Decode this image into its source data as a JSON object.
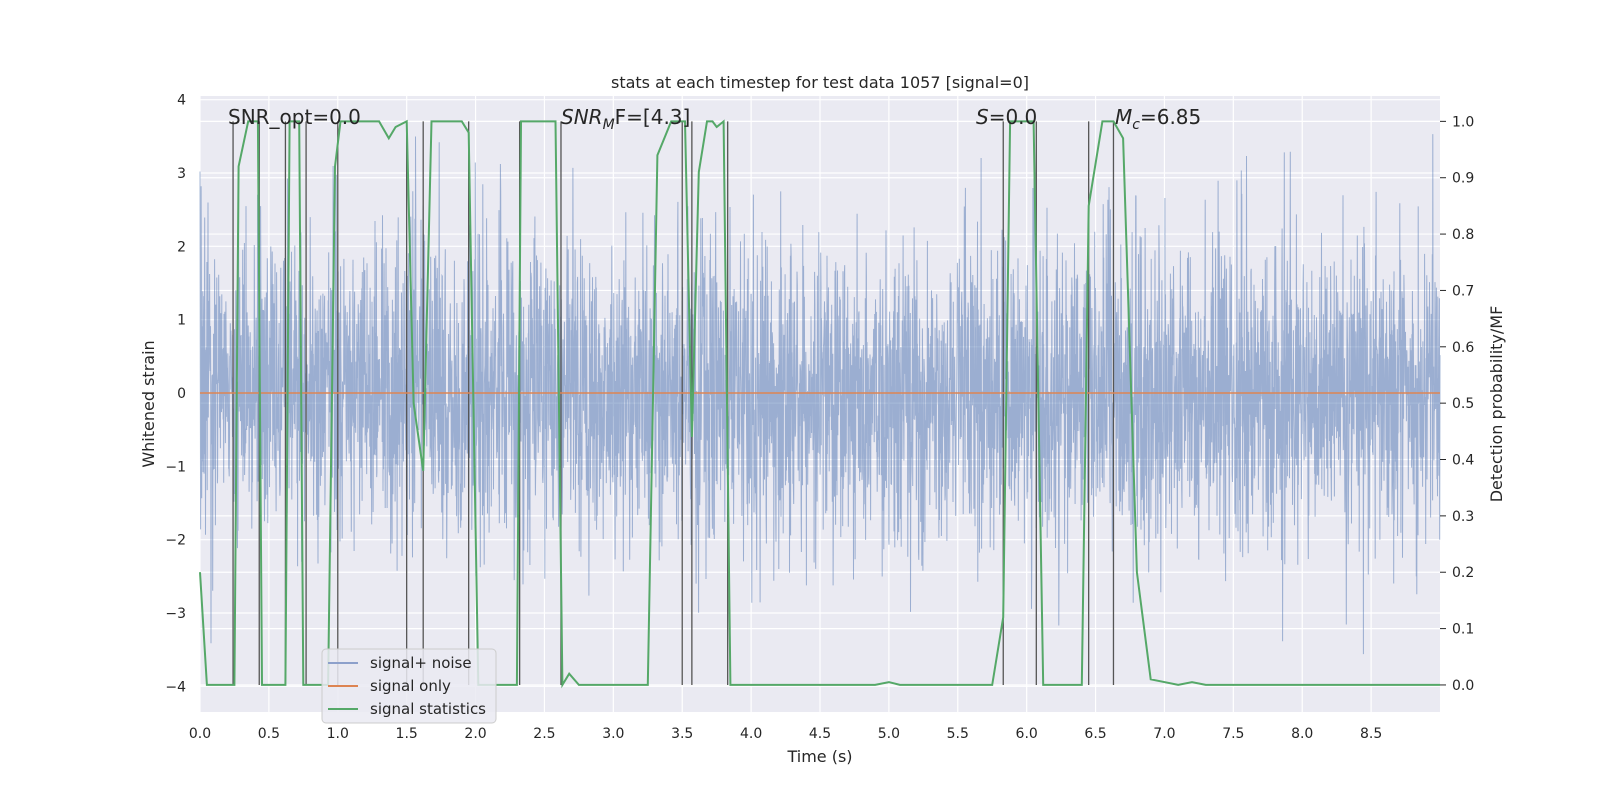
{
  "chart_data": {
    "type": "line",
    "title": "stats at each timestep for test data 1057 [signal=0]",
    "xlabel": "Time (s)",
    "ylabel_left": "Whitened strain",
    "ylabel_right": "Detection probability/MF",
    "xlim": [
      0.0,
      9.0
    ],
    "ylim_left": [
      -4.35,
      4.05
    ],
    "ylim_right": [
      -0.048,
      1.045
    ],
    "x_ticks": [
      "0.0",
      "0.5",
      "1.0",
      "1.5",
      "2.0",
      "2.5",
      "3.0",
      "3.5",
      "4.0",
      "4.5",
      "5.0",
      "5.5",
      "6.0",
      "6.5",
      "7.0",
      "7.5",
      "8.0",
      "8.5"
    ],
    "y_left_ticks": [
      "4",
      "3",
      "2",
      "1",
      "0",
      "−1",
      "−2",
      "−3",
      "−4"
    ],
    "y_right_ticks": [
      "1.0",
      "0.9",
      "0.8",
      "0.7",
      "0.6",
      "0.5",
      "0.4",
      "0.3",
      "0.2",
      "0.1",
      "0.0"
    ],
    "grid": true,
    "legend_position": "lower-left",
    "legend": [
      "signal+ noise",
      "signal only",
      "signal statistics"
    ],
    "annotations": {
      "snr_opt": "SNR_opt=0.0",
      "snr_mf_prefix": "SNR",
      "snr_mf_sub": "M",
      "snr_mf_suffix": "F=[4.3]",
      "s_label": "S",
      "s_value": "=0.0",
      "mc_label": "M",
      "mc_sub": "c",
      "mc_value": "=6.85"
    },
    "series": [
      {
        "name": "signal+ noise",
        "axis": "left",
        "color": "#4c72b0",
        "description": "whitened strain noise, roughly gaussian with std ~1 and peaks near ±3.5",
        "amplitude_std": 1.0,
        "n_points": 4500
      },
      {
        "name": "signal only",
        "axis": "left",
        "color": "#dd8452",
        "x": [
          0.0,
          9.0
        ],
        "y": [
          0.0,
          0.0
        ]
      },
      {
        "name": "signal statistics",
        "axis": "right",
        "color": "#55a868",
        "x": [
          0.0,
          0.05,
          0.25,
          0.28,
          0.35,
          0.42,
          0.45,
          0.62,
          0.65,
          0.72,
          0.75,
          0.93,
          0.98,
          1.02,
          1.05,
          1.3,
          1.37,
          1.42,
          1.5,
          1.55,
          1.62,
          1.68,
          1.9,
          1.95,
          2.02,
          2.3,
          2.33,
          2.38,
          2.58,
          2.63,
          2.68,
          2.75,
          3.25,
          3.32,
          3.42,
          3.52,
          3.57,
          3.62,
          3.68,
          3.72,
          3.75,
          3.8,
          3.85,
          3.92,
          4.9,
          5.0,
          5.08,
          5.75,
          5.83,
          5.88,
          6.05,
          6.12,
          6.4,
          6.45,
          6.55,
          6.63,
          6.7,
          6.8,
          6.9,
          7.1,
          7.2,
          7.3,
          9.0
        ],
        "y": [
          0.2,
          0.0,
          0.0,
          0.92,
          1.0,
          1.0,
          0.0,
          0.0,
          1.0,
          1.0,
          0.0,
          0.0,
          0.92,
          1.0,
          1.0,
          1.0,
          0.97,
          0.99,
          1.0,
          0.5,
          0.38,
          1.0,
          1.0,
          0.98,
          0.0,
          0.0,
          1.0,
          1.0,
          1.0,
          0.0,
          0.02,
          0.0,
          0.0,
          0.94,
          1.0,
          1.0,
          0.44,
          0.91,
          1.0,
          1.0,
          0.99,
          1.0,
          0.0,
          0.0,
          0.0,
          0.005,
          0.0,
          0.0,
          0.12,
          1.0,
          1.0,
          0.0,
          0.0,
          0.85,
          1.0,
          1.0,
          0.97,
          0.2,
          0.01,
          0.0,
          0.005,
          0.0,
          0.0
        ]
      }
    ],
    "vertical_markers": [
      0.24,
      0.43,
      0.62,
      0.77,
      1.0,
      1.5,
      1.62,
      1.95,
      2.32,
      2.62,
      3.5,
      3.57,
      3.83,
      5.83,
      6.07,
      6.45,
      6.63
    ]
  }
}
